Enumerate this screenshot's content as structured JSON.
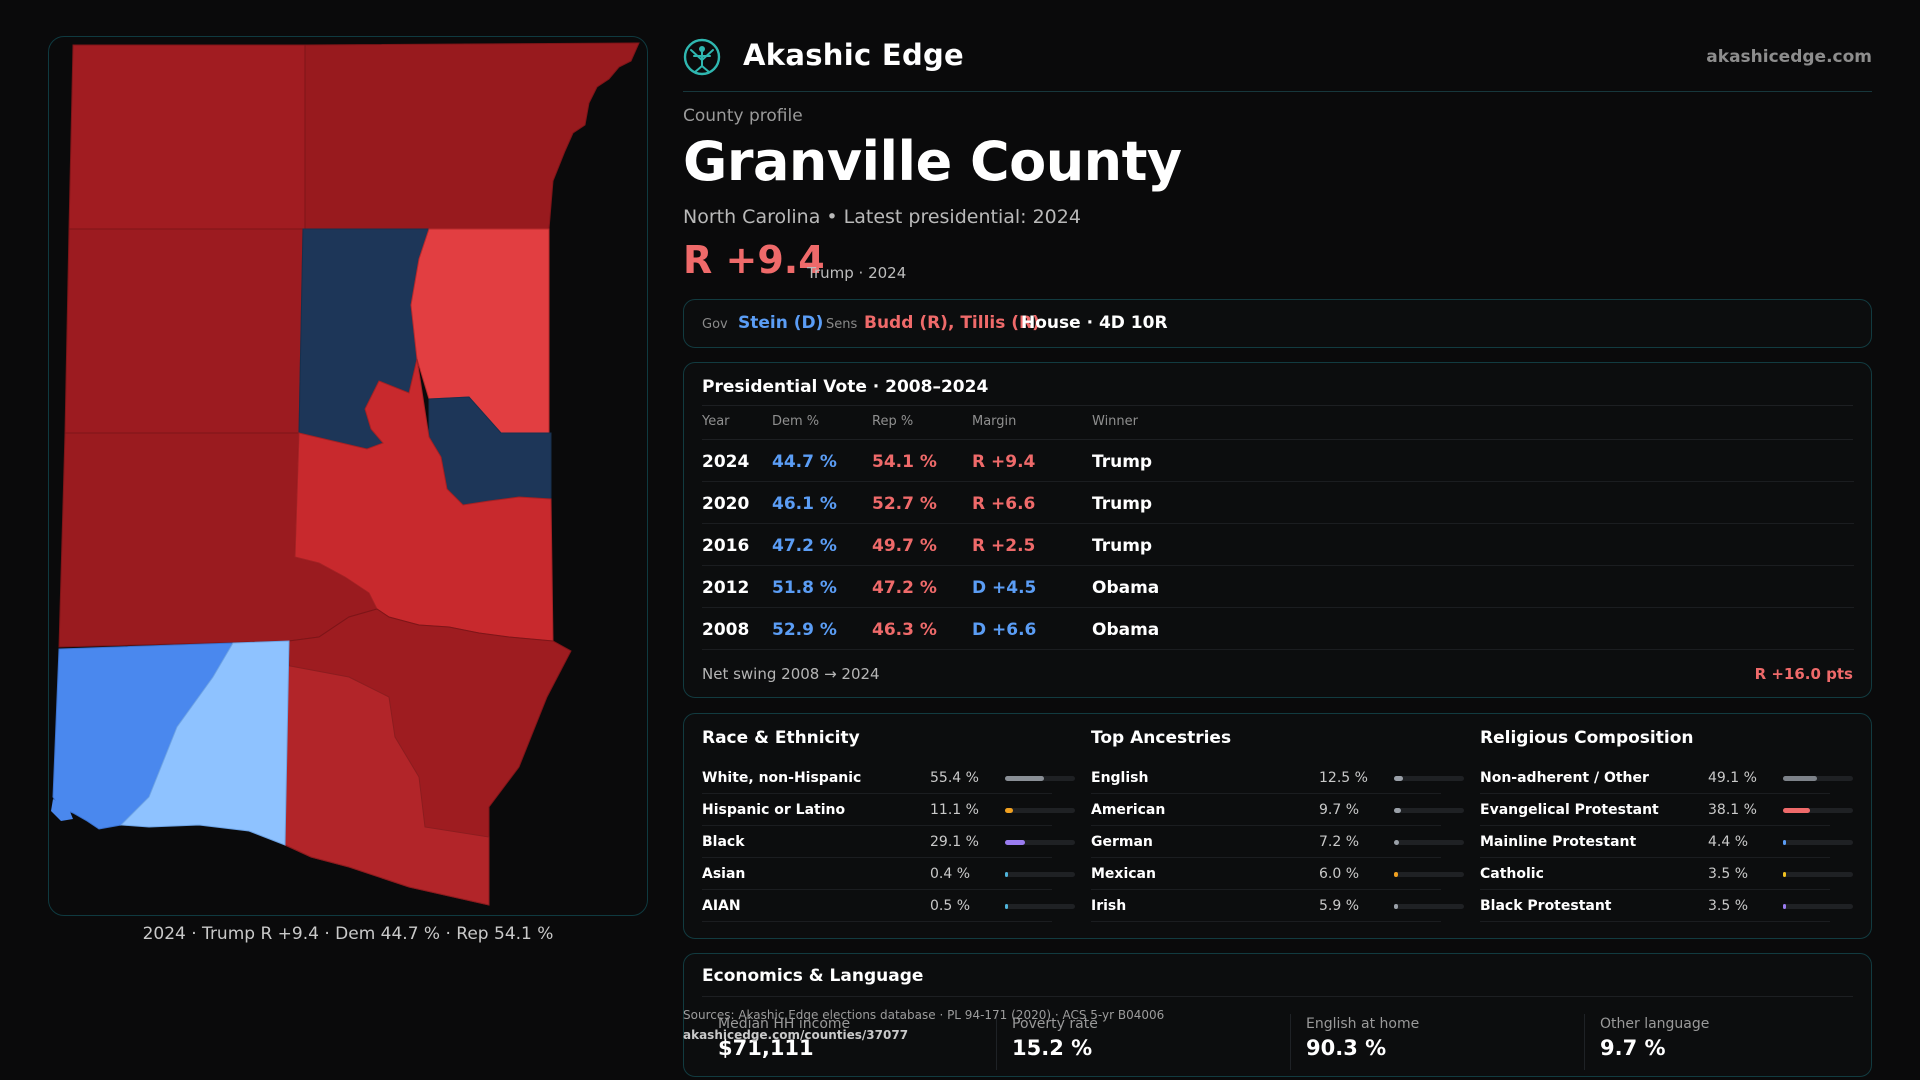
{
  "brand": {
    "name": "Akashic Edge",
    "url": "akashicedge.com"
  },
  "county": {
    "kicker": "County profile",
    "name": "Granville County",
    "subtitle": "North Carolina • Latest presidential: 2024",
    "margin": "R +9.4",
    "margin_note": "Trump · 2024"
  },
  "officials": {
    "gov_label": "Gov",
    "gov_value": "Stein (D)",
    "sens_label": "Sens",
    "sens_value": "Budd (R), Tillis (R)",
    "house": "House · 4D 10R"
  },
  "presidential": {
    "title": "Presidential Vote · 2008–2024",
    "headers": {
      "year": "Year",
      "dem": "Dem %",
      "rep": "Rep %",
      "margin": "Margin",
      "winner": "Winner"
    },
    "rows": [
      {
        "year": "2024",
        "dem": "44.7 %",
        "rep": "54.1 %",
        "margin": "R +9.4",
        "winner": "Trump",
        "party": "R"
      },
      {
        "year": "2020",
        "dem": "46.1 %",
        "rep": "52.7 %",
        "margin": "R +6.6",
        "winner": "Trump",
        "party": "R"
      },
      {
        "year": "2016",
        "dem": "47.2 %",
        "rep": "49.7 %",
        "margin": "R +2.5",
        "winner": "Trump",
        "party": "R"
      },
      {
        "year": "2012",
        "dem": "51.8 %",
        "rep": "47.2 %",
        "margin": "D +4.5",
        "winner": "Obama",
        "party": "D"
      },
      {
        "year": "2008",
        "dem": "52.9 %",
        "rep": "46.3 %",
        "margin": "D +6.6",
        "winner": "Obama",
        "party": "D"
      }
    ],
    "swing_label": "Net swing 2008 → 2024",
    "swing_value": "R +16.0 pts"
  },
  "race": {
    "title": "Race & Ethnicity",
    "items": [
      {
        "label": "White, non-Hispanic",
        "value": "55.4 %",
        "pct": 55.4,
        "color": "#8a8f96"
      },
      {
        "label": "Hispanic or Latino",
        "value": "11.1 %",
        "pct": 11.1,
        "color": "#f0a020"
      },
      {
        "label": "Black",
        "value": "29.1 %",
        "pct": 29.1,
        "color": "#9a7cf0"
      },
      {
        "label": "Asian",
        "value": "0.4 %",
        "pct": 0.4,
        "color": "#4fb3d9"
      },
      {
        "label": "AIAN",
        "value": "0.5 %",
        "pct": 0.5,
        "color": "#4fb3d9"
      }
    ]
  },
  "ancestry": {
    "title": "Top Ancestries",
    "items": [
      {
        "label": "English",
        "value": "12.5 %",
        "pct": 12.5,
        "color": "#9aa0a8"
      },
      {
        "label": "American",
        "value": "9.7 %",
        "pct": 9.7,
        "color": "#9aa0a8"
      },
      {
        "label": "German",
        "value": "7.2 %",
        "pct": 7.2,
        "color": "#9aa0a8"
      },
      {
        "label": "Mexican",
        "value": "6.0 %",
        "pct": 6.0,
        "color": "#f0a020"
      },
      {
        "label": "Irish",
        "value": "5.9 %",
        "pct": 5.9,
        "color": "#9aa0a8"
      }
    ]
  },
  "religion": {
    "title": "Religious Composition",
    "items": [
      {
        "label": "Non-adherent / Other",
        "value": "49.1 %",
        "pct": 49.1,
        "color": "#7d8289"
      },
      {
        "label": "Evangelical Protestant",
        "value": "38.1 %",
        "pct": 38.1,
        "color": "#ef6a6a"
      },
      {
        "label": "Mainline Protestant",
        "value": "4.4 %",
        "pct": 4.4,
        "color": "#5b9df5"
      },
      {
        "label": "Catholic",
        "value": "3.5 %",
        "pct": 3.5,
        "color": "#f0c020"
      },
      {
        "label": "Black Protestant",
        "value": "3.5 %",
        "pct": 3.5,
        "color": "#9a7cf0"
      }
    ]
  },
  "economics": {
    "title": "Economics & Language",
    "items": [
      {
        "label": "Median HH income",
        "value": "$71,111"
      },
      {
        "label": "Poverty rate",
        "value": "15.2 %"
      },
      {
        "label": "English at home",
        "value": "90.3 %"
      },
      {
        "label": "Other language",
        "value": "9.7 %"
      }
    ]
  },
  "sources": {
    "text": "Sources: Akashic Edge elections database · PL 94-171 (2020) · ACS 5-yr B04006",
    "url": "akashicedge.com/counties/37077"
  },
  "map": {
    "caption": "2024 · Trump R +9.4 · Dem 44.7 % · Rep 54.1 %"
  },
  "colors": {
    "rep": "#ef6a6a",
    "dem": "#5b9df5",
    "dark_red": "#9b1b1f",
    "mid_red": "#c62a2d",
    "bright_red": "#e23e41",
    "navy": "#1e3a5f",
    "blue": "#4a88ee",
    "light_blue": "#8ec2ff"
  }
}
